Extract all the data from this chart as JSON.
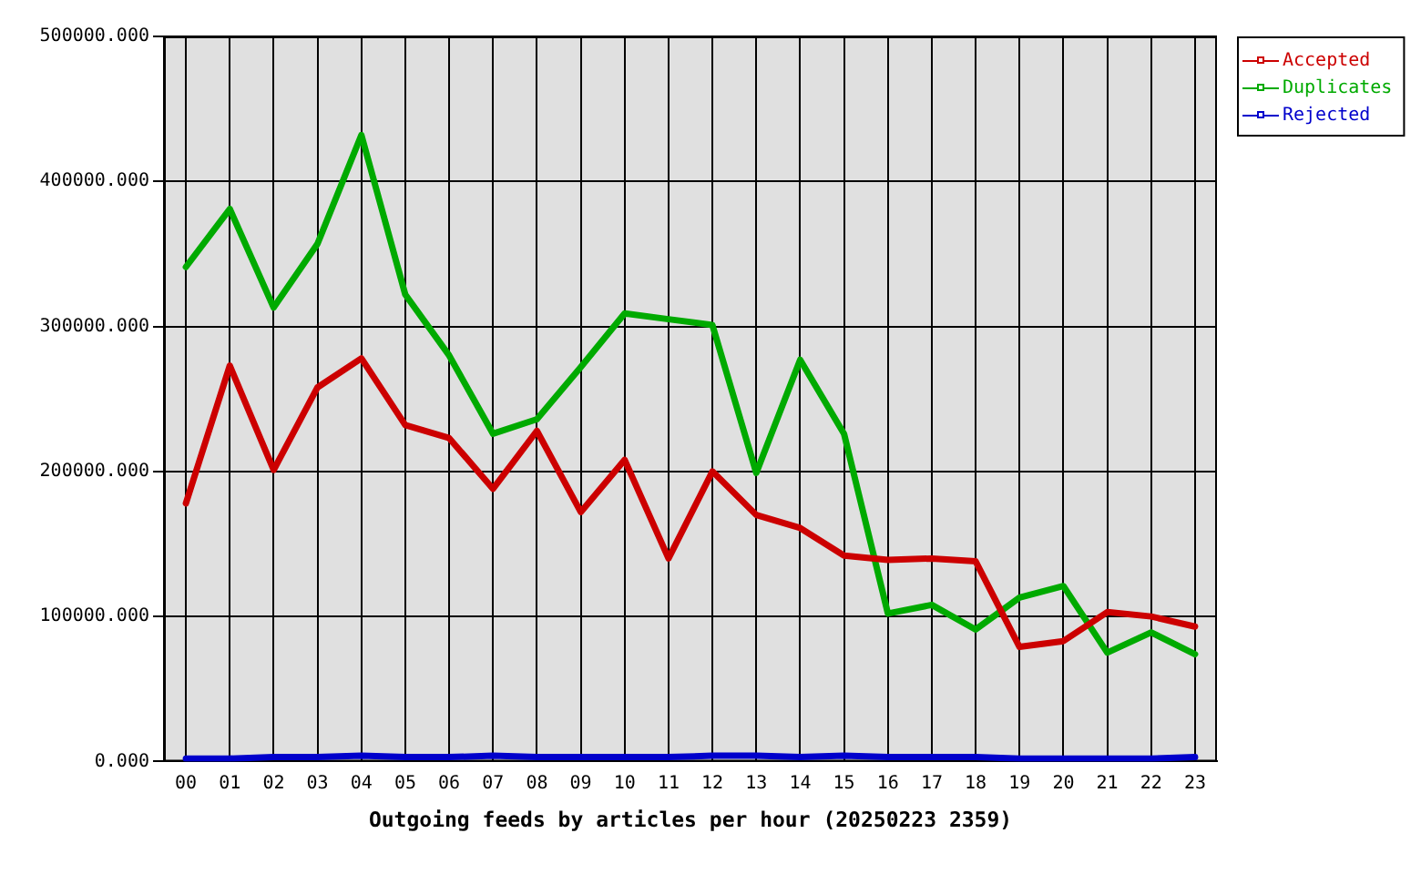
{
  "chart_data": {
    "type": "line",
    "xlabel": "Outgoing feeds by articles per hour (20250223 2359)",
    "categories": [
      "00",
      "01",
      "02",
      "03",
      "04",
      "05",
      "06",
      "07",
      "08",
      "09",
      "10",
      "11",
      "12",
      "13",
      "14",
      "15",
      "16",
      "17",
      "18",
      "19",
      "20",
      "21",
      "22",
      "23"
    ],
    "series": [
      {
        "name": "Accepted",
        "color": "#cc0000",
        "values": [
          178000,
          273000,
          201000,
          258000,
          278000,
          232000,
          223000,
          188000,
          228000,
          172000,
          208000,
          140000,
          200000,
          170000,
          161000,
          142000,
          139000,
          140000,
          138000,
          79000,
          83000,
          103000,
          100000,
          93000
        ]
      },
      {
        "name": "Duplicates",
        "color": "#00aa00",
        "values": [
          341000,
          381000,
          313000,
          357000,
          432000,
          322000,
          280000,
          226000,
          236000,
          272000,
          309000,
          305000,
          301000,
          199000,
          277000,
          226000,
          102000,
          108000,
          91000,
          113000,
          121000,
          75000,
          89000,
          74000
        ]
      },
      {
        "name": "Rejected",
        "color": "#0000cc",
        "values": [
          2000,
          2000,
          3000,
          3000,
          4000,
          3000,
          3000,
          4000,
          3000,
          3000,
          3000,
          3000,
          4000,
          4000,
          3000,
          4000,
          3000,
          3000,
          3000,
          2000,
          2000,
          2000,
          2000,
          3000
        ]
      }
    ],
    "ylim": [
      0,
      500000
    ],
    "yticks": [
      {
        "value": 0,
        "label": "0.000"
      },
      {
        "value": 100000,
        "label": "100000.000"
      },
      {
        "value": 200000,
        "label": "200000.000"
      },
      {
        "value": 300000,
        "label": "300000.000"
      },
      {
        "value": 400000,
        "label": "400000.000"
      },
      {
        "value": 500000,
        "label": "500000.000"
      }
    ],
    "grid": true,
    "legend": "top right"
  }
}
